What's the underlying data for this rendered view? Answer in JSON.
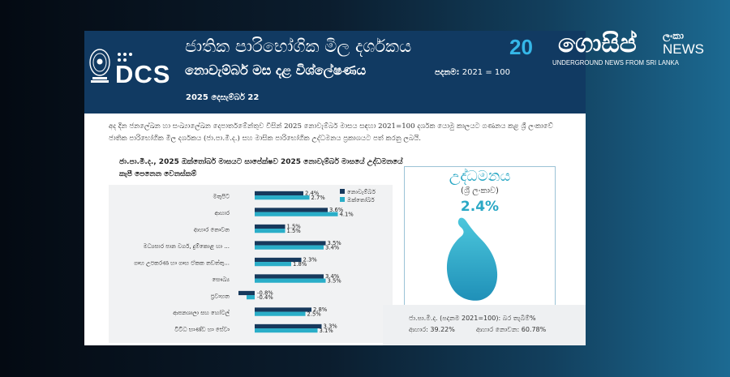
{
  "header": {
    "title_line1": "ජාතික පාරිභෝගික මිල දර්ශකය",
    "title_line2": "නොවැම්බර් මස දළ විශ්ලේෂණය",
    "base_label": "පදනම:",
    "base_value": "2021 = 100",
    "date": "2025 දෙසැම්බර් 22",
    "logo_text": "DCS"
  },
  "intro_text": "අද දින ජනලේඛන හා සංඛ්‍යාලේඛන දෙපාර්තමේන්තුව විසින් 2025 නොවැම්බර් මාසය සඳහා 2021=100 දර්ශක යොමු කාලයට ගණනය කළ ශ්‍රී ලංකාවේ ජාතික පාරිභෝගික මිල දර්ශකය (ජා.පා.මි.ද.) සහ මාසික පාරිභෝගික උද්ධමනය ප්‍රකාශයට පත් කරනු ලබයි.",
  "chart_data": {
    "type": "bar",
    "orientation": "horizontal",
    "title": "ජා.පා.මි.ද., 2025 ඔක්තෝබර් මාසයට සාපේක්ෂව 2025 නොවැම්බර් මාසයේ උද්ධමනයේ කැපී පෙනෙන වෙනස්කම්",
    "categories": [
      "මතුපිට",
      "ආහාර",
      "ආහාර නොවන",
      "මධ්‍යසාර පාන වර්ග, දුම්කොළ හා ...",
      "ගෘහ උපකරණ හා ගෘහ ඒකක නඩත්තු...",
      "සෞඛ්‍ය",
      "ප්‍රවාහන",
      "ආපනශාලා සහ හෝටල්",
      "විවිධ භාණ්ඩ හා සේවා"
    ],
    "series": [
      {
        "name": "නොවැම්බර්",
        "color": "#17395c",
        "values": [
          2.4,
          3.6,
          1.5,
          3.5,
          2.3,
          3.4,
          -0.8,
          2.8,
          3.3
        ]
      },
      {
        "name": "ඔක්තෝබර්",
        "color": "#2aaec8",
        "values": [
          2.7,
          4.1,
          1.5,
          3.4,
          1.8,
          3.5,
          -0.4,
          2.5,
          3.1
        ]
      }
    ],
    "value_labels": [
      [
        "2.4%",
        "2.7%"
      ],
      [
        "3.6%",
        "4.1%"
      ],
      [
        "1.5%",
        "1.5%"
      ],
      [
        "3.5%",
        "3.4%"
      ],
      [
        "2.3%",
        "1.8%"
      ],
      [
        "3.4%",
        "3.5%"
      ],
      [
        "-0.8%",
        "-0.4%"
      ],
      [
        "2.8%",
        "2.5%"
      ],
      [
        "3.3%",
        "3.1%"
      ]
    ],
    "xlim": [
      -1,
      5
    ],
    "legend_position": "top-right"
  },
  "inflation_box": {
    "title": "උද්ධමනය",
    "subtitle": "(ශ්‍රී ලංකාව)",
    "value": "2.4%",
    "footnote_line1": "ජා.පා.මි.ද. (පදනම 2021=100): බර තැබීම්%",
    "footnote_food": "ආහාර: 39.22%",
    "footnote_nonfood": "ආහාර නොවන: 60.78%"
  },
  "branding": {
    "year_prefix": "20",
    "name": "ගොසිප්",
    "lanka": "ලංකා",
    "news": "NEWS",
    "tagline": "UNDERGROUND NEWS FROM SRI LANKA"
  },
  "colors": {
    "header_bg": "#113a62",
    "november": "#17395c",
    "october": "#2aaec8",
    "accent": "#2aa8c5"
  }
}
